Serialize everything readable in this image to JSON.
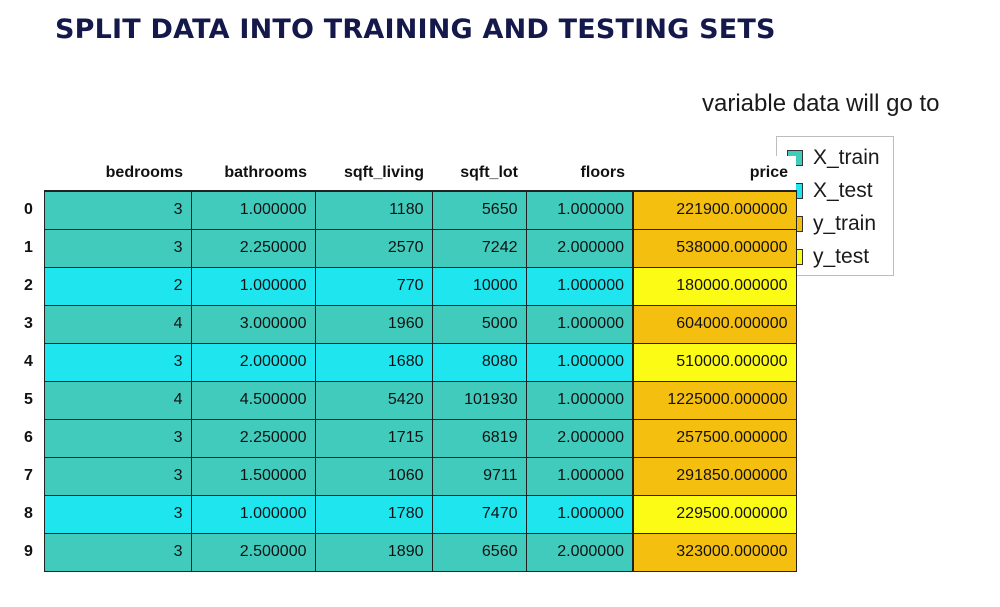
{
  "title": "SPLIT DATA INTO TRAINING AND TESTING SETS",
  "legend": {
    "heading": "variable data will go to",
    "items": [
      {
        "label": "X_train",
        "color": "#40cbbc"
      },
      {
        "label": "X_test",
        "color": "#1fe6ee"
      },
      {
        "label": "y_train",
        "color": "#f5bf0f"
      },
      {
        "label": "y_test",
        "color": "#fbfb16"
      }
    ]
  },
  "colors": {
    "x_train": "#40cbbc",
    "x_test": "#1fe6ee",
    "y_train": "#f5bf0f",
    "y_test": "#fbfb16"
  },
  "table": {
    "columns": [
      "bedrooms",
      "bathrooms",
      "sqft_living",
      "sqft_lot",
      "floors",
      "price"
    ],
    "rows": [
      {
        "index": "0",
        "set": "train",
        "bedrooms": "3",
        "bathrooms": "1.000000",
        "sqft_living": "1180",
        "sqft_lot": "5650",
        "floors": "1.000000",
        "price": "221900.000000"
      },
      {
        "index": "1",
        "set": "train",
        "bedrooms": "3",
        "bathrooms": "2.250000",
        "sqft_living": "2570",
        "sqft_lot": "7242",
        "floors": "2.000000",
        "price": "538000.000000"
      },
      {
        "index": "2",
        "set": "test",
        "bedrooms": "2",
        "bathrooms": "1.000000",
        "sqft_living": "770",
        "sqft_lot": "10000",
        "floors": "1.000000",
        "price": "180000.000000"
      },
      {
        "index": "3",
        "set": "train",
        "bedrooms": "4",
        "bathrooms": "3.000000",
        "sqft_living": "1960",
        "sqft_lot": "5000",
        "floors": "1.000000",
        "price": "604000.000000"
      },
      {
        "index": "4",
        "set": "test",
        "bedrooms": "3",
        "bathrooms": "2.000000",
        "sqft_living": "1680",
        "sqft_lot": "8080",
        "floors": "1.000000",
        "price": "510000.000000"
      },
      {
        "index": "5",
        "set": "train",
        "bedrooms": "4",
        "bathrooms": "4.500000",
        "sqft_living": "5420",
        "sqft_lot": "101930",
        "floors": "1.000000",
        "price": "1225000.000000"
      },
      {
        "index": "6",
        "set": "train",
        "bedrooms": "3",
        "bathrooms": "2.250000",
        "sqft_living": "1715",
        "sqft_lot": "6819",
        "floors": "2.000000",
        "price": "257500.000000"
      },
      {
        "index": "7",
        "set": "train",
        "bedrooms": "3",
        "bathrooms": "1.500000",
        "sqft_living": "1060",
        "sqft_lot": "9711",
        "floors": "1.000000",
        "price": "291850.000000"
      },
      {
        "index": "8",
        "set": "test",
        "bedrooms": "3",
        "bathrooms": "1.000000",
        "sqft_living": "1780",
        "sqft_lot": "7470",
        "floors": "1.000000",
        "price": "229500.000000"
      },
      {
        "index": "9",
        "set": "train",
        "bedrooms": "3",
        "bathrooms": "2.500000",
        "sqft_living": "1890",
        "sqft_lot": "6560",
        "floors": "2.000000",
        "price": "323000.000000"
      }
    ]
  }
}
